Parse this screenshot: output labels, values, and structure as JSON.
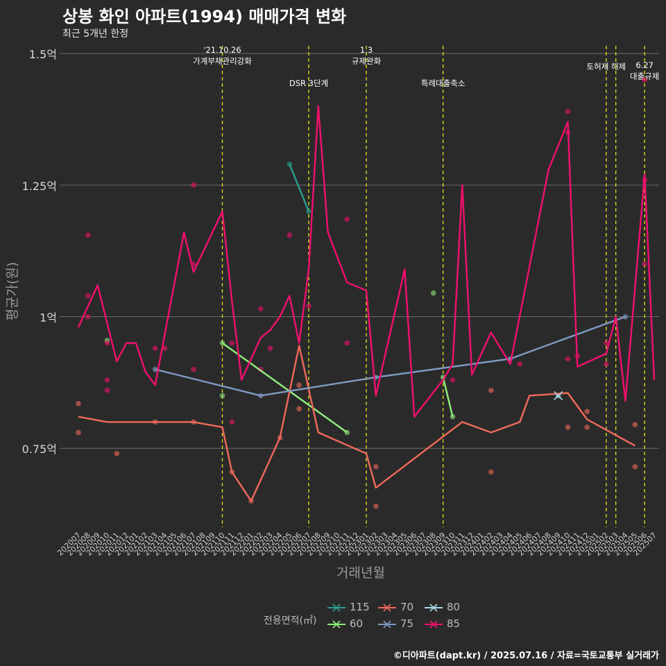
{
  "chart_data": {
    "type": "line",
    "title": "상봉 화인 아파트(1994) 매매가격 변화",
    "subtitle": "최근 5개년 한정",
    "xlabel": "거래년월",
    "ylabel": "평균가(원)",
    "ylim": [
      0.6,
      1.52
    ],
    "y_ticks": [
      {
        "value": 0.75,
        "label": "0.75억"
      },
      {
        "value": 1.0,
        "label": "1억"
      },
      {
        "value": 1.25,
        "label": "1.25억"
      },
      {
        "value": 1.5,
        "label": "1.5억"
      }
    ],
    "grid": true,
    "categories": [
      "202007",
      "202008",
      "202009",
      "202010",
      "202011",
      "202012",
      "202101",
      "202102",
      "202103",
      "202104",
      "202105",
      "202106",
      "202107",
      "202108",
      "202109",
      "202110",
      "202111",
      "202112",
      "202201",
      "202202",
      "202203",
      "202204",
      "202205",
      "202206",
      "202207",
      "202208",
      "202209",
      "202210",
      "202211",
      "202212",
      "202301",
      "202302",
      "202303",
      "202304",
      "202305",
      "202306",
      "202307",
      "202308",
      "202309",
      "202310",
      "202311",
      "202312",
      "202401",
      "202402",
      "202403",
      "202404",
      "202405",
      "202406",
      "202407",
      "202408",
      "202409",
      "202410",
      "202411",
      "202412",
      "202501",
      "202502",
      "202503",
      "202504",
      "202505",
      "202506",
      "202507"
    ],
    "events": [
      {
        "x": "202110",
        "lines": [
          "'21.10.26",
          "가계부채관리강화"
        ],
        "level": 1
      },
      {
        "x": "202207",
        "lines": [
          "DSR 3단계"
        ],
        "level": 2
      },
      {
        "x": "202301",
        "lines": [
          "1.3",
          "규제완화"
        ],
        "level": 1
      },
      {
        "x": "202309",
        "lines": [
          "특례대출축소"
        ],
        "level": 2
      },
      {
        "x": "202502",
        "lines": [
          "토허제 해제"
        ],
        "level": 0
      },
      {
        "x": "202503",
        "lines": [],
        "level": 0
      },
      {
        "x": "202506",
        "lines": [
          "6.27",
          "대출규제"
        ],
        "level": 3
      }
    ],
    "legend": {
      "title": "전용면적(㎡)",
      "position": "bottom"
    },
    "series": [
      {
        "name": "115",
        "color": "#2a9d8f",
        "line": [
          [
            "202205",
            1.29
          ],
          [
            "202207",
            1.2
          ]
        ],
        "points": [
          [
            "202205",
            1.29
          ],
          [
            "202207",
            1.2
          ]
        ]
      },
      {
        "name": "60",
        "color": "#90ee7e",
        "line": [
          [
            "202110",
            0.95
          ],
          [
            "202211",
            0.78
          ]
        ],
        "points": [
          [
            "202010",
            0.955
          ],
          [
            "202110",
            0.95
          ],
          [
            "202110",
            0.85
          ],
          [
            "202211",
            0.78
          ],
          [
            "202309",
            0.885
          ],
          [
            "202310",
            0.81
          ],
          [
            "202308",
            1.045
          ]
        ],
        "line2": [
          [
            "202309",
            0.885
          ],
          [
            "202310",
            0.81
          ]
        ]
      },
      {
        "name": "70",
        "color": "#f06a5b",
        "line": [
          [
            "202007",
            0.81
          ],
          [
            "202010",
            0.8
          ],
          [
            "202103",
            0.8
          ],
          [
            "202107",
            0.8
          ],
          [
            "202110",
            0.79
          ],
          [
            "202111",
            0.705
          ],
          [
            "202201",
            0.65
          ],
          [
            "202204",
            0.77
          ],
          [
            "202206",
            0.945
          ],
          [
            "202208",
            0.78
          ],
          [
            "202301",
            0.74
          ],
          [
            "202302",
            0.675
          ],
          [
            "202311",
            0.8
          ],
          [
            "202402",
            0.78
          ],
          [
            "202405",
            0.8
          ],
          [
            "202406",
            0.85
          ],
          [
            "202410",
            0.855
          ],
          [
            "202412",
            0.805
          ],
          [
            "202505",
            0.755
          ]
        ],
        "points": [
          [
            "202007",
            0.835
          ],
          [
            "202007",
            0.78
          ],
          [
            "202011",
            0.74
          ],
          [
            "202103",
            0.8
          ],
          [
            "202107",
            0.8
          ],
          [
            "202111",
            0.705
          ],
          [
            "202201",
            0.65
          ],
          [
            "202204",
            0.77
          ],
          [
            "202206",
            0.825
          ],
          [
            "202206",
            0.87
          ],
          [
            "202302",
            0.715
          ],
          [
            "202302",
            0.64
          ],
          [
            "202402",
            0.86
          ],
          [
            "202402",
            0.705
          ],
          [
            "202410",
            0.79
          ],
          [
            "202412",
            0.79
          ],
          [
            "202412",
            0.82
          ],
          [
            "202505",
            0.715
          ],
          [
            "202505",
            0.795
          ]
        ]
      },
      {
        "name": "75",
        "color": "#7f9cc4",
        "line": [
          [
            "202103",
            0.9
          ],
          [
            "202202",
            0.85
          ],
          [
            "202302",
            0.885
          ],
          [
            "202404",
            0.92
          ],
          [
            "202504",
            1.0
          ]
        ],
        "points": [
          [
            "202103",
            0.9
          ],
          [
            "202202",
            0.85
          ],
          [
            "202302",
            0.885
          ],
          [
            "202404",
            0.92
          ],
          [
            "202504",
            1.0
          ]
        ]
      },
      {
        "name": "80",
        "color": "#a8d8e8",
        "line": [],
        "points": [
          [
            "202409",
            0.85
          ]
        ]
      },
      {
        "name": "85",
        "color": "#f0106e",
        "line": [
          [
            "202007",
            0.98
          ],
          [
            "202009",
            1.06
          ],
          [
            "202011",
            0.915
          ],
          [
            "202012",
            0.95
          ],
          [
            "202101",
            0.95
          ],
          [
            "202102",
            0.895
          ],
          [
            "202103",
            0.87
          ],
          [
            "202106",
            1.16
          ],
          [
            "202107",
            1.085
          ],
          [
            "202110",
            1.2
          ],
          [
            "202111",
            1.03
          ],
          [
            "202112",
            0.88
          ],
          [
            "202202",
            0.96
          ],
          [
            "202203",
            0.975
          ],
          [
            "202204",
            1.0
          ],
          [
            "202205",
            1.04
          ],
          [
            "202206",
            0.95
          ],
          [
            "202207",
            1.09
          ],
          [
            "202208",
            1.4
          ],
          [
            "202209",
            1.16
          ],
          [
            "202211",
            1.065
          ],
          [
            "202301",
            1.05
          ],
          [
            "202302",
            0.85
          ],
          [
            "202305",
            1.09
          ],
          [
            "202306",
            0.81
          ],
          [
            "202309",
            0.88
          ],
          [
            "202310",
            0.91
          ],
          [
            "202311",
            1.25
          ],
          [
            "202312",
            0.89
          ],
          [
            "202402",
            0.97
          ],
          [
            "202404",
            0.91
          ],
          [
            "202408",
            1.28
          ],
          [
            "202410",
            1.37
          ],
          [
            "202411",
            0.905
          ],
          [
            "202502",
            0.93
          ],
          [
            "202503",
            1.0
          ],
          [
            "202504",
            0.84
          ],
          [
            "202506",
            1.27
          ],
          [
            "202507",
            0.88
          ]
        ],
        "points": [
          [
            "202008",
            1.155
          ],
          [
            "202008",
            1.04
          ],
          [
            "202008",
            1.0
          ],
          [
            "202010",
            0.95
          ],
          [
            "202010",
            0.88
          ],
          [
            "202010",
            0.86
          ],
          [
            "202103",
            0.94
          ],
          [
            "202104",
            0.94
          ],
          [
            "202107",
            1.25
          ],
          [
            "202107",
            1.1
          ],
          [
            "202107",
            0.9
          ],
          [
            "202111",
            0.95
          ],
          [
            "202111",
            0.8
          ],
          [
            "202202",
            1.015
          ],
          [
            "202202",
            0.9
          ],
          [
            "202203",
            0.94
          ],
          [
            "202205",
            1.155
          ],
          [
            "202207",
            1.02
          ],
          [
            "202211",
            1.185
          ],
          [
            "202211",
            0.95
          ],
          [
            "202310",
            0.88
          ],
          [
            "202405",
            0.91
          ],
          [
            "202410",
            1.39
          ],
          [
            "202410",
            1.35
          ],
          [
            "202410",
            0.92
          ],
          [
            "202411",
            0.925
          ],
          [
            "202502",
            0.91
          ],
          [
            "202502",
            0.95
          ],
          [
            "202506",
            1.45
          ],
          [
            "202506",
            1.1
          ],
          [
            "202506",
            1.26
          ]
        ]
      }
    ]
  },
  "caption": "©디아파트(dapt.kr) / 2025.07.16 / 자료=국토교통부 실거래가"
}
